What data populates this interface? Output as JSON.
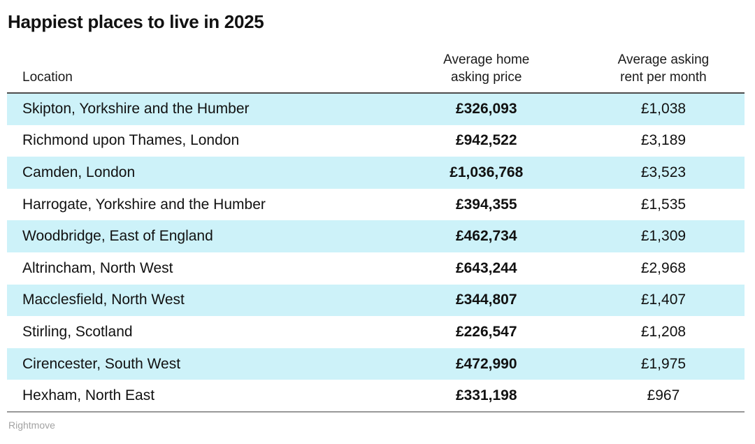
{
  "title": "Happiest places to live in 2025",
  "source": "Rightmove",
  "colors": {
    "row_stripe": "#cdf2f9",
    "header_border": "#4d4d4d",
    "bottom_border": "#999999",
    "source_text": "#a3a3a3",
    "text": "#111111"
  },
  "chart_data": {
    "type": "table",
    "title": "Happiest places to live in 2025",
    "columns": [
      "Location",
      "Average home asking price",
      "Average asking rent per month"
    ],
    "rows": [
      [
        "Skipton, Yorkshire and the Humber",
        "£326,093",
        "£1,038"
      ],
      [
        "Richmond upon Thames, London",
        "£942,522",
        "£3,189"
      ],
      [
        "Camden, London",
        "£1,036,768",
        "£3,523"
      ],
      [
        "Harrogate, Yorkshire and the Humber",
        "£394,355",
        "£1,535"
      ],
      [
        "Woodbridge, East of England",
        "£462,734",
        "£1,309"
      ],
      [
        "Altrincham, North West",
        "£643,244",
        "£2,968"
      ],
      [
        "Macclesfield, North West",
        "£344,807",
        "£1,407"
      ],
      [
        "Stirling, Scotland",
        "£226,547",
        "£1,208"
      ],
      [
        "Cirencester, South West",
        "£472,990",
        "£1,975"
      ],
      [
        "Hexham, North East",
        "£331,198",
        "£967"
      ]
    ],
    "source": "Rightmove",
    "layout": {
      "stripe_pattern": "odd-rows-highlighted",
      "price_column_bold": true,
      "value_alignment": "center"
    }
  }
}
